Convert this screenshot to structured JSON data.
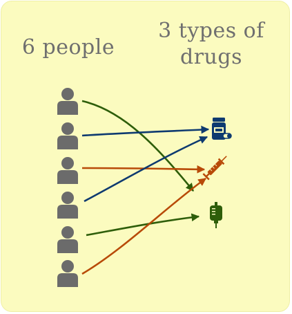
{
  "labels": {
    "people": "6 people",
    "drugs_line1": "3 types of",
    "drugs_line2": "drugs"
  },
  "colors": {
    "background": "#fbfbbf",
    "person": "#6b6b6b",
    "label": "#6f6f6f",
    "blue": "#0e3a70",
    "orange": "#b84a08",
    "green": "#2e5e0a"
  },
  "people": [
    {
      "icon": "person-icon"
    },
    {
      "icon": "person-icon"
    },
    {
      "icon": "person-icon"
    },
    {
      "icon": "person-icon"
    },
    {
      "icon": "person-icon"
    },
    {
      "icon": "person-icon"
    }
  ],
  "drugs": [
    {
      "icon": "pill-bottle-icon",
      "color": "blue"
    },
    {
      "icon": "syringe-icon",
      "color": "orange"
    },
    {
      "icon": "iv-bag-icon",
      "color": "green"
    }
  ],
  "connections": [
    {
      "person": 1,
      "drug": 3,
      "color": "green"
    },
    {
      "person": 2,
      "drug": 1,
      "color": "blue"
    },
    {
      "person": 3,
      "drug": 2,
      "color": "orange"
    },
    {
      "person": 4,
      "drug": 1,
      "color": "blue"
    },
    {
      "person": 5,
      "drug": 3,
      "color": "green"
    },
    {
      "person": 6,
      "drug": 2,
      "color": "orange"
    }
  ]
}
